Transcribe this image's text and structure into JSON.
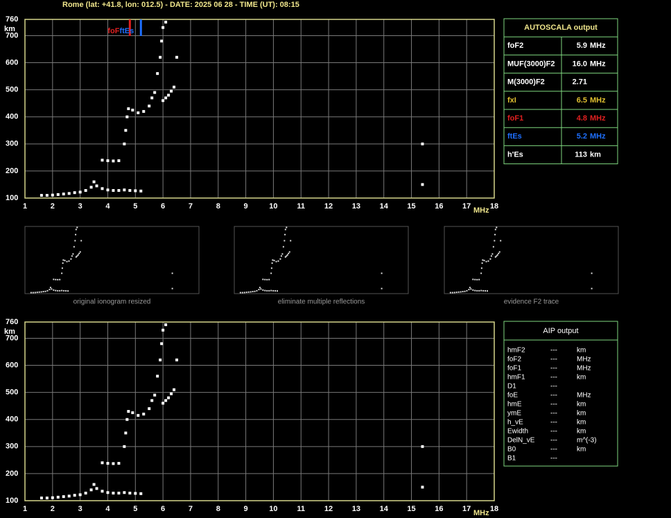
{
  "header": {
    "title": "Rome (lat: +41.8, lon: 012.5) - DATE: 2025 06 28 - TIME (UT): 08:15"
  },
  "chart_data": [
    {
      "type": "scatter",
      "x_label": "MHz",
      "y_label": "km",
      "xlim": [
        1,
        18
      ],
      "ylim": [
        100,
        760
      ],
      "xticks": [
        1,
        2,
        3,
        4,
        5,
        6,
        7,
        8,
        9,
        10,
        11,
        12,
        13,
        14,
        15,
        16,
        17,
        18
      ],
      "yticks": [
        100,
        200,
        300,
        400,
        500,
        600,
        700,
        760
      ],
      "grid": true,
      "color": "#ffffff",
      "x": [
        1.6,
        1.8,
        2.0,
        2.2,
        2.4,
        2.6,
        2.8,
        3.0,
        3.2,
        3.4,
        3.5,
        3.6,
        3.8,
        4.0,
        4.2,
        4.4,
        4.6,
        4.8,
        5.0,
        5.2,
        3.8,
        4.0,
        4.2,
        4.4,
        4.6,
        4.65,
        4.7,
        4.75,
        4.9,
        5.1,
        5.3,
        5.5,
        5.6,
        5.7,
        5.8,
        5.9,
        5.95,
        6.0,
        6.1,
        6.0,
        6.1,
        6.2,
        6.3,
        6.4,
        6.5,
        15.4,
        15.4
      ],
      "y": [
        110,
        110,
        111,
        113,
        115,
        117,
        120,
        122,
        128,
        140,
        160,
        145,
        135,
        130,
        128,
        128,
        130,
        128,
        127,
        126,
        240,
        238,
        237,
        238,
        300,
        350,
        400,
        430,
        425,
        415,
        420,
        440,
        470,
        490,
        560,
        620,
        680,
        730,
        750,
        460,
        470,
        480,
        495,
        510,
        620,
        300,
        150
      ],
      "markers": [
        {
          "label": "foF",
          "x": 4.8,
          "color": "#e02020"
        },
        {
          "label": "ftEs",
          "x": 5.2,
          "color": "#1e6fff"
        }
      ]
    },
    {
      "type": "scatter",
      "x_label": "MHz",
      "y_label": "km",
      "xlim": [
        1,
        18
      ],
      "ylim": [
        100,
        760
      ],
      "xticks": [
        1,
        2,
        3,
        4,
        5,
        6,
        7,
        8,
        9,
        10,
        11,
        12,
        13,
        14,
        15,
        16,
        17,
        18
      ],
      "yticks": [
        100,
        200,
        300,
        400,
        500,
        600,
        700,
        760
      ],
      "grid": true,
      "color": "#ffffff",
      "x": [
        1.6,
        1.8,
        2.0,
        2.2,
        2.4,
        2.6,
        2.8,
        3.0,
        3.2,
        3.4,
        3.5,
        3.6,
        3.8,
        4.0,
        4.2,
        4.4,
        4.6,
        4.8,
        5.0,
        5.2,
        3.8,
        4.0,
        4.2,
        4.4,
        4.6,
        4.65,
        4.7,
        4.75,
        4.9,
        5.1,
        5.3,
        5.5,
        5.6,
        5.7,
        5.8,
        5.9,
        5.95,
        6.0,
        6.1,
        6.0,
        6.1,
        6.2,
        6.3,
        6.4,
        6.5,
        15.4,
        15.4
      ],
      "y": [
        110,
        110,
        111,
        113,
        115,
        117,
        120,
        122,
        128,
        140,
        160,
        145,
        135,
        130,
        128,
        128,
        130,
        128,
        127,
        126,
        240,
        238,
        237,
        238,
        300,
        350,
        400,
        430,
        425,
        415,
        420,
        440,
        470,
        490,
        560,
        620,
        680,
        730,
        750,
        460,
        470,
        480,
        495,
        510,
        620,
        300,
        150
      ]
    }
  ],
  "thumbnails": [
    "original ionogram resized",
    "eliminate multiple reflections",
    "evidence F2 trace"
  ],
  "autoscala": {
    "title": "AUTOSCALA output",
    "rows": [
      {
        "label": "foF2",
        "value": "5.9",
        "unit": "MHz",
        "color": "#ffffff"
      },
      {
        "label": "MUF(3000)F2",
        "value": "16.0",
        "unit": "MHz",
        "color": "#ffffff"
      },
      {
        "label": "M(3000)F2",
        "value": "2.71",
        "color": "#ffffff"
      },
      {
        "label": "fxI",
        "value": "6.5",
        "unit": "MHz",
        "color": "#e0c030"
      },
      {
        "label": "foF1",
        "value": "4.8",
        "unit": "MHz",
        "color": "#e02020"
      },
      {
        "label": "ftEs",
        "value": "5.2",
        "unit": "MHz",
        "color": "#1e6fff"
      },
      {
        "label": "h'Es",
        "value": "113",
        "unit": "km",
        "color": "#ffffff"
      }
    ]
  },
  "aip": {
    "title": "AIP output",
    "rows": [
      {
        "label": "hmF2",
        "value": "---",
        "unit": "km"
      },
      {
        "label": "foF2",
        "value": "---",
        "unit": "MHz"
      },
      {
        "label": "foF1",
        "value": "---",
        "unit": "MHz"
      },
      {
        "label": "hmF1",
        "value": "---",
        "unit": "km"
      },
      {
        "label": "D1",
        "value": "---"
      },
      {
        "label": "foE",
        "value": "---",
        "unit": "MHz"
      },
      {
        "label": "hmE",
        "value": "---",
        "unit": "km"
      },
      {
        "label": "ymE",
        "value": "---",
        "unit": "km"
      },
      {
        "label": "h_vE",
        "value": "---",
        "unit": "km"
      },
      {
        "label": "Ewidth",
        "value": "---",
        "unit": "km"
      },
      {
        "label": "DelN_vE",
        "value": "---",
        "unit": "m^(-3)"
      },
      {
        "label": "B0",
        "value": "---",
        "unit": "km"
      },
      {
        "label": "B1",
        "value": "---"
      }
    ]
  }
}
